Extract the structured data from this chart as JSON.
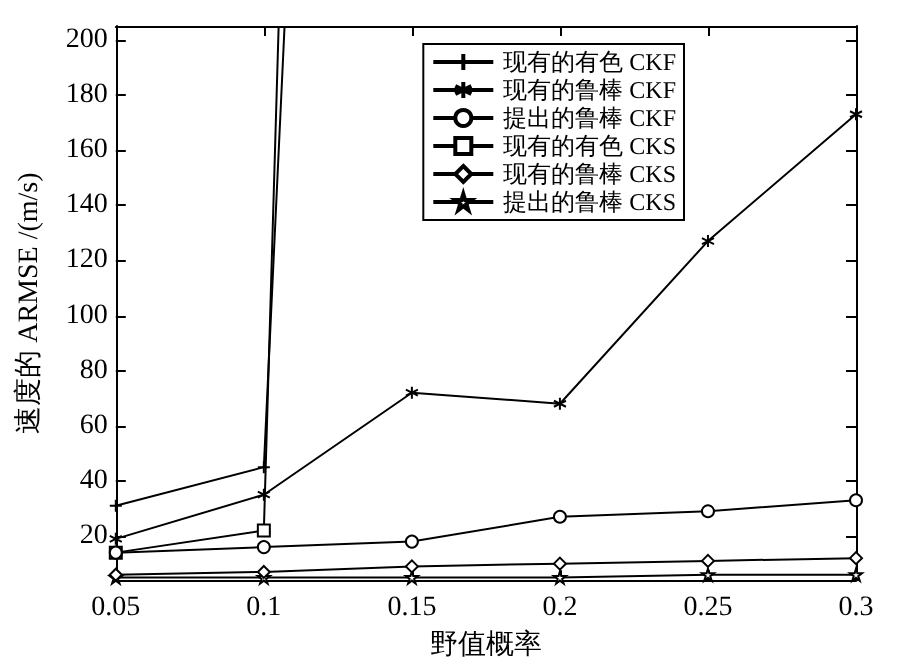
{
  "chart_data": {
    "type": "line",
    "xlabel": "野值概率",
    "ylabel": "速度的 ARMSE /(m/s)",
    "x": [
      0.05,
      0.1,
      0.15,
      0.2,
      0.25,
      0.3
    ],
    "xlim": [
      0.05,
      0.3
    ],
    "xticks": [
      0.05,
      0.1,
      0.15,
      0.2,
      0.25,
      0.3
    ],
    "ylim": [
      4,
      205
    ],
    "yticks": [
      20,
      40,
      60,
      80,
      100,
      120,
      140,
      160,
      180,
      200
    ],
    "grid": false,
    "legend": "top right",
    "line_style": "solid",
    "series": [
      {
        "name": "现有的有色 CKF",
        "color": "#000000",
        "marker": "cross",
        "x": [
          0.05,
          0.1,
          0.107
        ],
        "values": [
          31,
          45,
          205
        ]
      },
      {
        "name": "现有的鲁棒 CKF",
        "color": "#000000",
        "marker": "cross",
        "values": [
          19,
          35,
          72,
          68,
          127,
          173
        ]
      },
      {
        "name": "提出的鲁棒 CKF",
        "color": "#000000",
        "marker": "circle",
        "values": [
          14,
          16,
          18,
          27,
          29,
          33
        ]
      },
      {
        "name": "现有的有色 CKS",
        "color": "#000000",
        "marker": "square",
        "x": [
          0.05,
          0.1,
          0.105
        ],
        "values": [
          14,
          22,
          205
        ]
      },
      {
        "name": "现有的鲁棒 CKS",
        "color": "#000000",
        "marker": "diamond",
        "values": [
          6,
          7,
          9,
          10,
          11,
          12
        ]
      },
      {
        "name": "提出的鲁棒 CKS",
        "color": "#000000",
        "marker": "star",
        "values": [
          5,
          5,
          5,
          5,
          6,
          6
        ]
      }
    ]
  }
}
